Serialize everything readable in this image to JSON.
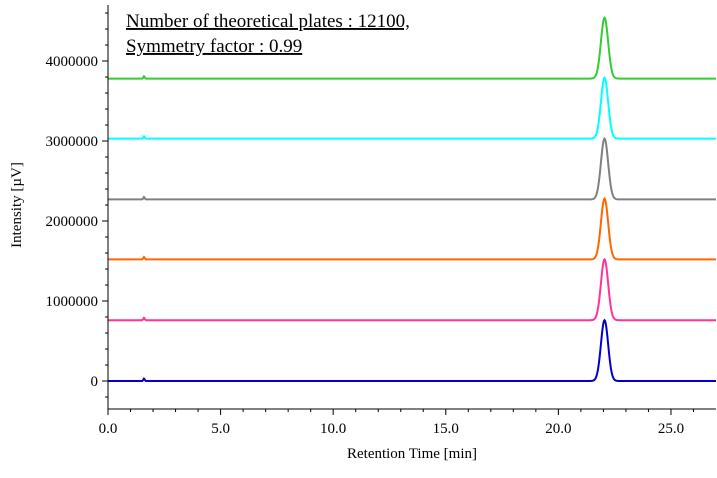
{
  "annotation": {
    "line1": "Number of theoretical plates : 12100,",
    "line2": "Symmetry factor : 0.99"
  },
  "chart_data": {
    "type": "line",
    "title": "",
    "xlabel": "Retention Time [min]",
    "ylabel": "Intensity [µV]",
    "xlim": [
      0,
      27
    ],
    "ylim": [
      -350000,
      4700000
    ],
    "x_ticks": [
      "0.0",
      "5.0",
      "10.0",
      "15.0",
      "20.0",
      "25.0"
    ],
    "x_tick_values": [
      0,
      5,
      10,
      15,
      20,
      25
    ],
    "y_ticks": [
      "0",
      "1000000",
      "2000000",
      "3000000",
      "4000000"
    ],
    "y_tick_values": [
      0,
      1000000,
      2000000,
      3000000,
      4000000
    ],
    "grid": false,
    "legend": "none",
    "peak_retention_time": 22.05,
    "series": [
      {
        "color": "#0000cc",
        "baseline": 0,
        "peak_height": 760000
      },
      {
        "color": "#ff3399",
        "baseline": 760000,
        "peak_height": 760000
      },
      {
        "color": "#ff6600",
        "baseline": 1520000,
        "peak_height": 760000
      },
      {
        "color": "#808080",
        "baseline": 2270000,
        "peak_height": 760000
      },
      {
        "color": "#00ffff",
        "baseline": 3030000,
        "peak_height": 760000
      },
      {
        "color": "#33cc33",
        "baseline": 3780000,
        "peak_height": 760000
      }
    ]
  }
}
